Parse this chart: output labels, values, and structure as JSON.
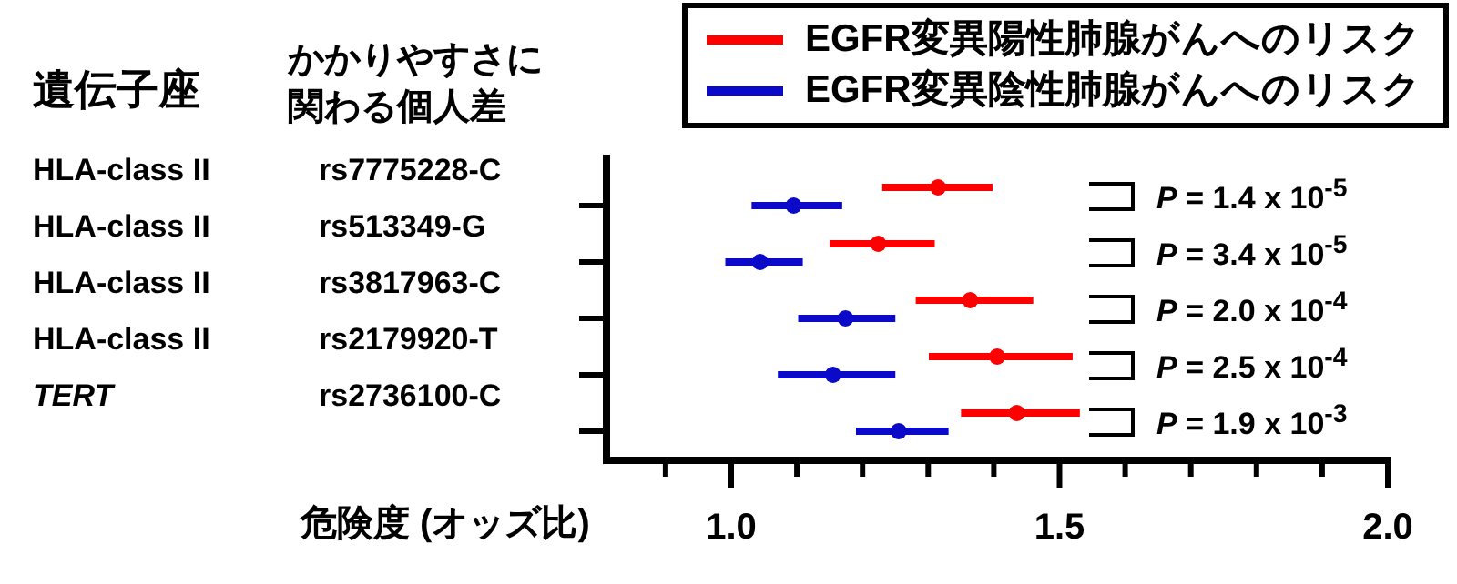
{
  "chart_data": {
    "type": "scatter",
    "orientation": "horizontal",
    "ylabel": "かかりやすさに関わる個人差",
    "xlabel": "危険度 (オッズ比)",
    "categories": [
      "rs7775228-C",
      "rs513349-G",
      "rs3817963-C",
      "rs2179920-T",
      "rs2736100-C"
    ],
    "xlim": [
      0.81,
      2.0
    ],
    "xticks": [
      {
        "value": 0.9,
        "label": null
      },
      {
        "value": 1.0,
        "label": "1.0"
      },
      {
        "value": 1.1,
        "label": null
      },
      {
        "value": 1.2,
        "label": null
      },
      {
        "value": 1.3,
        "label": null
      },
      {
        "value": 1.4,
        "label": null
      },
      {
        "value": 1.5,
        "label": "1.5"
      },
      {
        "value": 1.6,
        "label": null
      },
      {
        "value": 1.7,
        "label": null
      },
      {
        "value": 1.8,
        "label": null
      },
      {
        "value": 1.9,
        "label": null
      },
      {
        "value": 2.0,
        "label": "2.0"
      }
    ],
    "series": [
      {
        "name": "EGFR変異陽性肺腺がんへのリスク",
        "color": "#ff0000",
        "values": [
          1.315,
          1.224,
          1.364,
          1.405,
          1.435
        ],
        "errors": [
          [
            1.23,
            1.398
          ],
          [
            1.15,
            1.31
          ],
          [
            1.281,
            1.46
          ],
          [
            1.301,
            1.52
          ],
          [
            1.35,
            1.531
          ]
        ]
      },
      {
        "name": "EGFR変異陰性肺腺がんへのリスク",
        "color": "#0a0ac8",
        "values": [
          1.095,
          1.044,
          1.174,
          1.155,
          1.255
        ],
        "errors": [
          [
            1.031,
            1.169
          ],
          [
            0.991,
            1.109
          ],
          [
            1.102,
            1.25
          ],
          [
            1.071,
            1.25
          ],
          [
            1.19,
            1.331
          ]
        ]
      }
    ],
    "legend": "top right",
    "marker": "circle",
    "annotations": [
      "遺伝子座",
      "HLA-class II",
      "HLA-class II",
      "HLA-class II",
      "HLA-class II",
      "*TERT*",
      "*P* = 1.4 x 10$^{-5}$",
      "*P* = 3.4 x 10$^{-5}$",
      "*P* = 2.0 x 10$^{-4}$",
      "*P* = 2.5 x 10$^{-4}$",
      "*P* = 1.9 x 10$^{-3}$"
    ]
  }
}
